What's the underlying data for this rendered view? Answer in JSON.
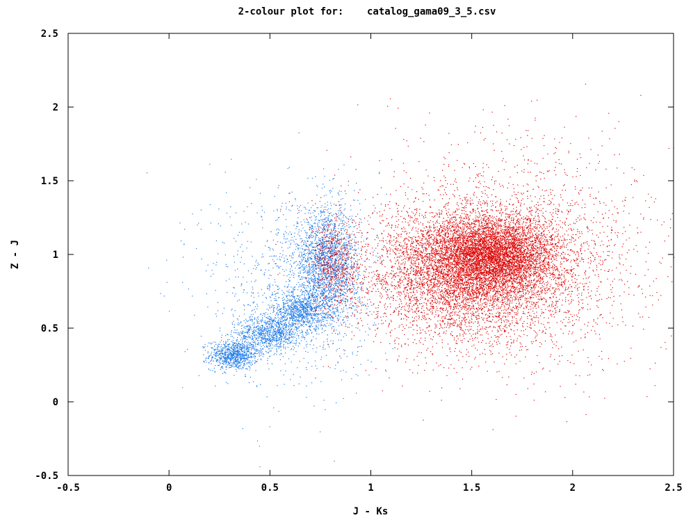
{
  "chart_data": {
    "type": "scatter",
    "title": "2-colour plot for:    catalog_gama09_3_5.csv",
    "xlabel": "J - Ks",
    "ylabel": "Z - J",
    "xlim": [
      -0.5,
      2.5
    ],
    "ylim": [
      -0.5,
      2.5
    ],
    "xticks": [
      -0.5,
      0,
      0.5,
      1,
      1.5,
      2,
      2.5
    ],
    "yticks": [
      -0.5,
      0,
      0.5,
      1,
      1.5,
      2,
      2.5
    ],
    "xtick_labels": [
      "-0.5",
      "0",
      "0.5",
      "1",
      "1.5",
      "2",
      "2.5"
    ],
    "ytick_labels": [
      "-0.5",
      "0",
      "0.5",
      "1",
      "1.5",
      "2",
      "2.5"
    ],
    "grid": false,
    "legend": "none",
    "series": [
      {
        "color": "#1e7be8",
        "clusters": [
          {
            "cx": 0.32,
            "cy": 0.32,
            "sx": 0.06,
            "sy": 0.05,
            "n": 900
          },
          {
            "cx": 0.5,
            "cy": 0.47,
            "sx": 0.08,
            "sy": 0.06,
            "n": 900
          },
          {
            "cx": 0.65,
            "cy": 0.62,
            "sx": 0.07,
            "sy": 0.06,
            "n": 800
          },
          {
            "cx": 0.78,
            "cy": 0.92,
            "sx": 0.08,
            "sy": 0.2,
            "n": 2200
          },
          {
            "cx": 0.6,
            "cy": 0.8,
            "sx": 0.22,
            "sy": 0.35,
            "n": 900
          }
        ]
      },
      {
        "color": "#dd0000",
        "clusters": [
          {
            "cx": 1.6,
            "cy": 1.0,
            "sx": 0.16,
            "sy": 0.13,
            "n": 5000
          },
          {
            "cx": 1.45,
            "cy": 0.85,
            "sx": 0.26,
            "sy": 0.22,
            "n": 4500
          },
          {
            "cx": 1.7,
            "cy": 1.0,
            "sx": 0.36,
            "sy": 0.38,
            "n": 2200
          },
          {
            "cx": 0.82,
            "cy": 0.92,
            "sx": 0.06,
            "sy": 0.16,
            "n": 500
          }
        ]
      }
    ]
  }
}
